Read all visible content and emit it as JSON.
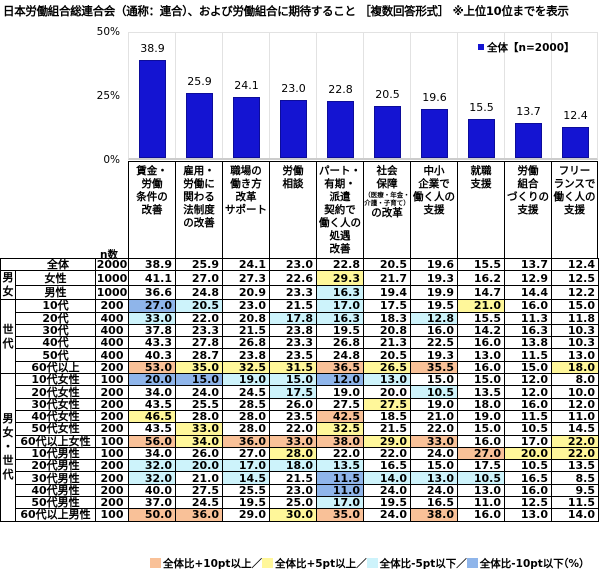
{
  "title": "日本労働組合総連合会（通称：連合）、および労働組合に期待すること ［複数回答形式］ ※上位10位までを表示",
  "legend_label": "全体【n=2000】",
  "n_caption": "n数",
  "unit_label": "（%）",
  "footer_legend": [
    {
      "label": "全体比+10pt以上／",
      "color": "#f9c198"
    },
    {
      "label": "全体比+5pt以上／",
      "color": "#fff79a"
    },
    {
      "label": "全体比-5pt以下／",
      "color": "#cdf3fb"
    },
    {
      "label": "全体比-10pt以下",
      "color": "#8fb5ea"
    }
  ],
  "colors": {
    "bar": "#1414d2",
    "plus10": "#f9c198",
    "plus5": "#fff79a",
    "minus5": "#cdf3fb",
    "minus10": "#8fb5ea"
  },
  "chart_data": {
    "type": "bar",
    "title": "日本労働組合総連合会（通称：連合）、および労働組合に期待すること ［複数回答形式］ ※上位10位までを表示",
    "xlabel": "",
    "ylabel": "",
    "ylim": [
      0,
      50
    ],
    "yticks": [
      "0%",
      "25%",
      "50%"
    ],
    "legend": [
      "全体【n=2000】"
    ],
    "legend_position": "top-right",
    "grid": true,
    "categories": [
      "賃金・労働条件の改善",
      "雇用・労働に関わる法制度の改善",
      "職場の働き方改革サポート",
      "労働相談",
      "パート・有期・派遣契約で働く人の処遇改善",
      "社会保障（医療・年金・介護・子育て）の改革",
      "中小企業で働く人の支援",
      "就職支援",
      "労働組合づくりの支援",
      "フリーランスで働く人の支援"
    ],
    "series": [
      {
        "name": "全体【n=2000】",
        "values": [
          38.9,
          25.9,
          24.1,
          23.0,
          22.8,
          20.5,
          19.6,
          15.5,
          13.7,
          12.4
        ]
      }
    ],
    "table": {
      "columns": [
        "n数",
        "賃金・労働条件の改善",
        "雇用・労働に関わる法制度の改善",
        "職場の働き方改革サポート",
        "労働相談",
        "パート・有期・派遣契約で働く人の処遇改善",
        "社会保障（医療・年金・介護・子育て）の改革",
        "中小企業で働く人の支援",
        "就職支援",
        "労働組合づくりの支援",
        "フリーランスで働く人の支援"
      ],
      "rows": [
        {
          "group": "",
          "label": "全体",
          "n": 2000,
          "values": [
            38.9,
            25.9,
            24.1,
            23.0,
            22.8,
            20.5,
            19.6,
            15.5,
            13.7,
            12.4
          ]
        },
        {
          "group": "男女",
          "label": "女性",
          "n": 1000,
          "values": [
            41.1,
            27.0,
            27.3,
            22.6,
            29.3,
            21.7,
            19.3,
            16.2,
            12.9,
            12.5
          ]
        },
        {
          "group": "男女",
          "label": "男性",
          "n": 1000,
          "values": [
            36.6,
            24.8,
            20.9,
            23.3,
            16.3,
            19.4,
            19.9,
            14.7,
            14.4,
            12.2
          ]
        },
        {
          "group": "世代",
          "label": "10代",
          "n": 200,
          "values": [
            27.0,
            20.5,
            23.0,
            21.5,
            17.0,
            17.5,
            19.5,
            21.0,
            16.0,
            15.0
          ]
        },
        {
          "group": "世代",
          "label": "20代",
          "n": 400,
          "values": [
            33.0,
            22.0,
            20.8,
            17.8,
            16.3,
            18.3,
            12.8,
            15.5,
            11.3,
            11.8
          ]
        },
        {
          "group": "世代",
          "label": "30代",
          "n": 400,
          "values": [
            37.8,
            23.3,
            21.5,
            23.8,
            19.5,
            20.8,
            16.0,
            14.2,
            16.3,
            10.3
          ]
        },
        {
          "group": "世代",
          "label": "40代",
          "n": 400,
          "values": [
            43.3,
            27.8,
            26.8,
            23.3,
            26.8,
            21.3,
            22.5,
            16.0,
            13.8,
            10.3
          ]
        },
        {
          "group": "世代",
          "label": "50代",
          "n": 400,
          "values": [
            40.3,
            28.7,
            23.8,
            23.5,
            24.8,
            20.5,
            19.3,
            13.0,
            11.5,
            13.0
          ]
        },
        {
          "group": "世代",
          "label": "60代以上",
          "n": 200,
          "values": [
            53.0,
            35.0,
            32.5,
            31.5,
            36.5,
            26.5,
            35.5,
            16.0,
            15.0,
            18.0
          ]
        },
        {
          "group": "男女・世代",
          "label": "10代女性",
          "n": 100,
          "values": [
            20.0,
            15.0,
            19.0,
            15.0,
            12.0,
            13.0,
            15.0,
            15.0,
            12.0,
            8.0
          ]
        },
        {
          "group": "男女・世代",
          "label": "20代女性",
          "n": 200,
          "values": [
            34.0,
            24.0,
            24.5,
            17.5,
            19.0,
            20.0,
            10.5,
            13.5,
            12.0,
            10.0
          ]
        },
        {
          "group": "男女・世代",
          "label": "30代女性",
          "n": 200,
          "values": [
            43.5,
            25.5,
            28.5,
            26.0,
            27.5,
            27.5,
            19.0,
            18.0,
            16.0,
            12.0
          ]
        },
        {
          "group": "男女・世代",
          "label": "40代女性",
          "n": 200,
          "values": [
            46.5,
            28.0,
            28.0,
            23.5,
            42.5,
            18.5,
            21.0,
            19.0,
            11.5,
            11.0
          ]
        },
        {
          "group": "男女・世代",
          "label": "50代女性",
          "n": 200,
          "values": [
            43.5,
            33.0,
            28.0,
            22.0,
            32.5,
            21.5,
            22.0,
            15.0,
            10.5,
            14.5
          ]
        },
        {
          "group": "男女・世代",
          "label": "60代以上女性",
          "n": 100,
          "values": [
            56.0,
            34.0,
            36.0,
            33.0,
            38.0,
            29.0,
            33.0,
            16.0,
            17.0,
            22.0
          ]
        },
        {
          "group": "男女・世代",
          "label": "10代男性",
          "n": 100,
          "values": [
            34.0,
            26.0,
            27.0,
            28.0,
            22.0,
            22.0,
            24.0,
            27.0,
            20.0,
            22.0
          ]
        },
        {
          "group": "男女・世代",
          "label": "20代男性",
          "n": 200,
          "values": [
            32.0,
            20.0,
            17.0,
            18.0,
            13.5,
            16.5,
            15.0,
            17.5,
            10.5,
            13.5
          ]
        },
        {
          "group": "男女・世代",
          "label": "30代男性",
          "n": 200,
          "values": [
            32.0,
            21.0,
            14.5,
            21.5,
            11.5,
            14.0,
            13.0,
            10.5,
            16.5,
            8.5
          ]
        },
        {
          "group": "男女・世代",
          "label": "40代男性",
          "n": 200,
          "values": [
            40.0,
            27.5,
            25.5,
            23.0,
            11.0,
            24.0,
            24.0,
            13.0,
            16.0,
            9.5
          ]
        },
        {
          "group": "男女・世代",
          "label": "50代男性",
          "n": 200,
          "values": [
            37.0,
            24.5,
            19.5,
            25.0,
            17.0,
            19.5,
            16.5,
            11.0,
            12.5,
            11.5
          ]
        },
        {
          "group": "男女・世代",
          "label": "60代以上男性",
          "n": 100,
          "values": [
            50.0,
            36.0,
            29.0,
            30.0,
            35.0,
            24.0,
            38.0,
            16.0,
            13.0,
            14.0
          ]
        }
      ]
    }
  },
  "header_labels": [
    {
      "lines": [
        "賃金・",
        "労働",
        "条件の",
        "改善"
      ]
    },
    {
      "lines": [
        "雇用・",
        "労働に",
        "関わる",
        "法制度",
        "の改善"
      ]
    },
    {
      "lines": [
        "職場の",
        "働き方",
        "改革",
        "サポート"
      ]
    },
    {
      "lines": [
        "労働",
        "相談"
      ]
    },
    {
      "lines": [
        "パート・",
        "有期・",
        "派遣",
        "契約で",
        "働く人の",
        "処遇",
        "改善"
      ]
    },
    {
      "lines": [
        "社会",
        "保障"
      ],
      "sub": [
        "（医療・年金・",
        "介護・子育て）"
      ],
      "after": [
        "の改革"
      ]
    },
    {
      "lines": [
        "中小",
        "企業で",
        "働く人の",
        "支援"
      ]
    },
    {
      "lines": [
        "就職",
        "支援"
      ]
    },
    {
      "lines": [
        "労働",
        "組合",
        "づくりの",
        "支援"
      ]
    },
    {
      "lines": [
        "フリー",
        "ランスで",
        "働く人の",
        "支援"
      ]
    }
  ],
  "group_labels": {
    "gender": "男女",
    "generation": "世代",
    "gender_generation": "男女・世代"
  }
}
